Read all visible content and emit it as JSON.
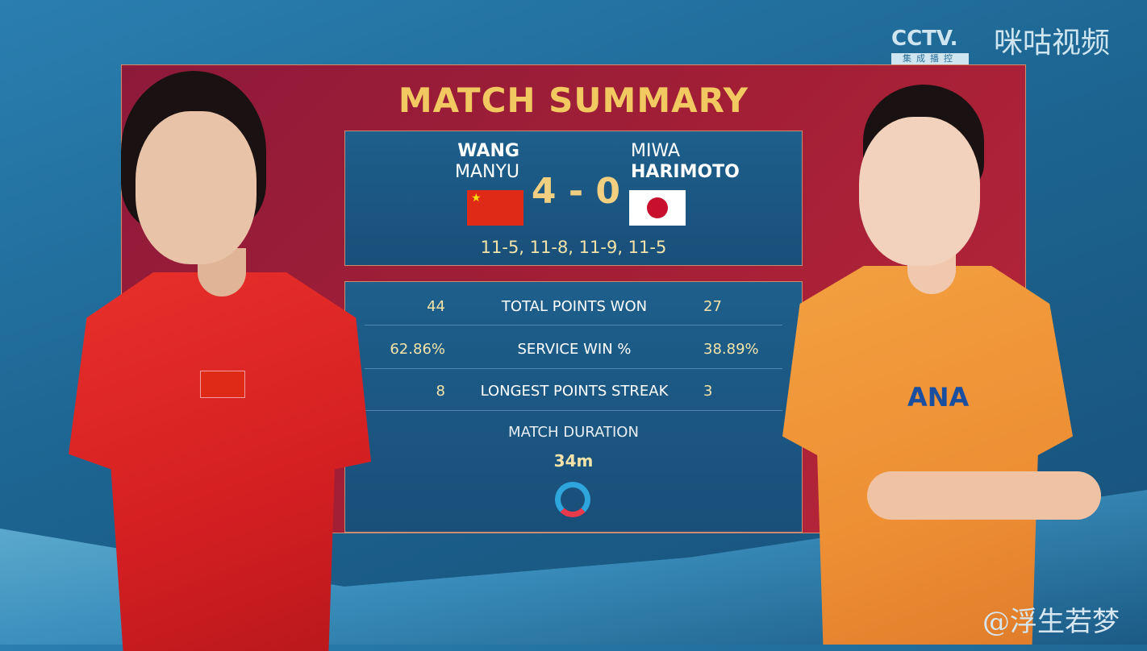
{
  "broadcaster": {
    "cctv": "CCTV.",
    "cctv_sub": "集成播控",
    "migu": "咪咕视频"
  },
  "title": "MATCH SUMMARY",
  "player1": {
    "first": "WANG",
    "last": "MANYU",
    "flag": "china-flag",
    "flag_color": "#e02a18"
  },
  "player2": {
    "first": "MIWA",
    "last": "HARIMOTO",
    "flag": "japan-flag",
    "flag_color": "#c8102e"
  },
  "score": "4 - 0",
  "games": "11-5, 11-8, 11-9, 11-5",
  "stats": [
    {
      "label": "TOTAL POINTS WON",
      "p1": "44",
      "p2": "27"
    },
    {
      "label": "SERVICE WIN %",
      "p1": "62.86%",
      "p2": "38.89%"
    },
    {
      "label": "LONGEST POINTS STREAK",
      "p1": "8",
      "p2": "3"
    }
  ],
  "duration": {
    "label": "MATCH DURATION",
    "value": "34m"
  },
  "watermark": "@浮生若梦",
  "colors": {
    "accent": "#f2c860",
    "panel": "#a31f36",
    "box": "#1e5f8c"
  }
}
